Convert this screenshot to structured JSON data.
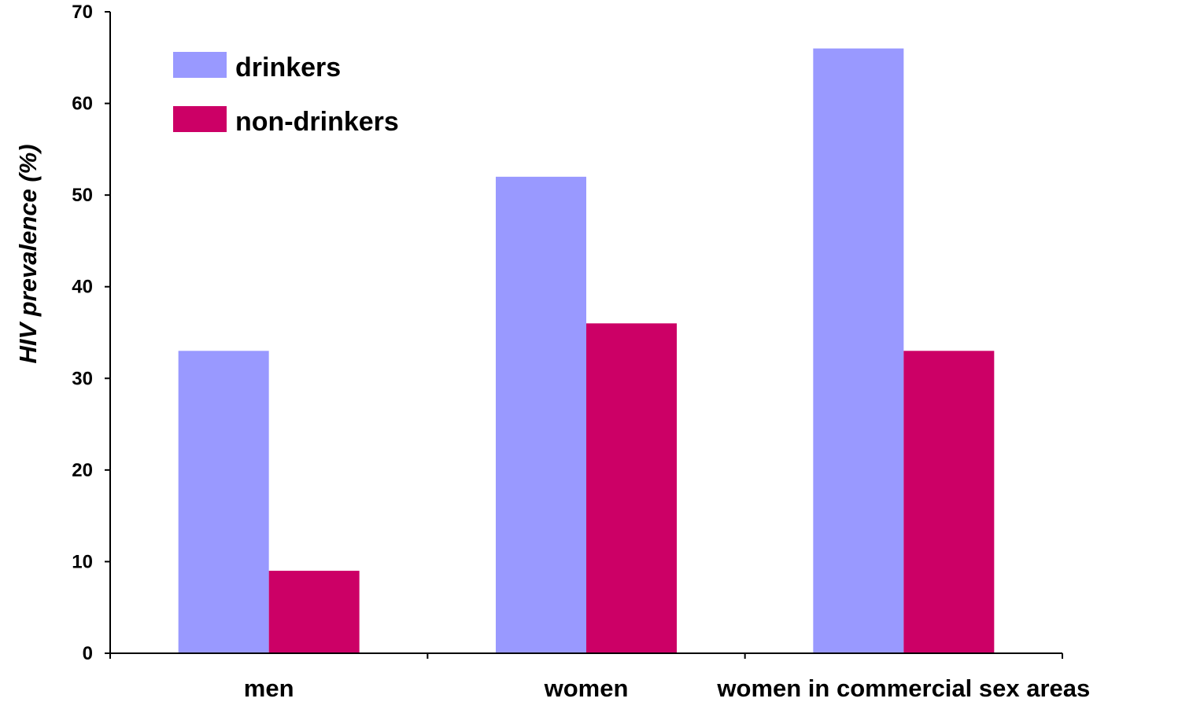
{
  "chart_data": {
    "type": "bar",
    "title": "",
    "xlabel": "",
    "ylabel": "HIV prevalence (%)",
    "ylim": [
      0,
      70
    ],
    "yticks": [
      0,
      10,
      20,
      30,
      40,
      50,
      60,
      70
    ],
    "grid": false,
    "legend_position": "top-left",
    "categories": [
      "men",
      "women",
      "women in commercial sex areas"
    ],
    "series": [
      {
        "name": "drinkers",
        "color": "#9999ff",
        "values": [
          33,
          52,
          66
        ]
      },
      {
        "name": "non-drinkers",
        "color": "#cc0066",
        "values": [
          9,
          36,
          33
        ]
      }
    ]
  }
}
